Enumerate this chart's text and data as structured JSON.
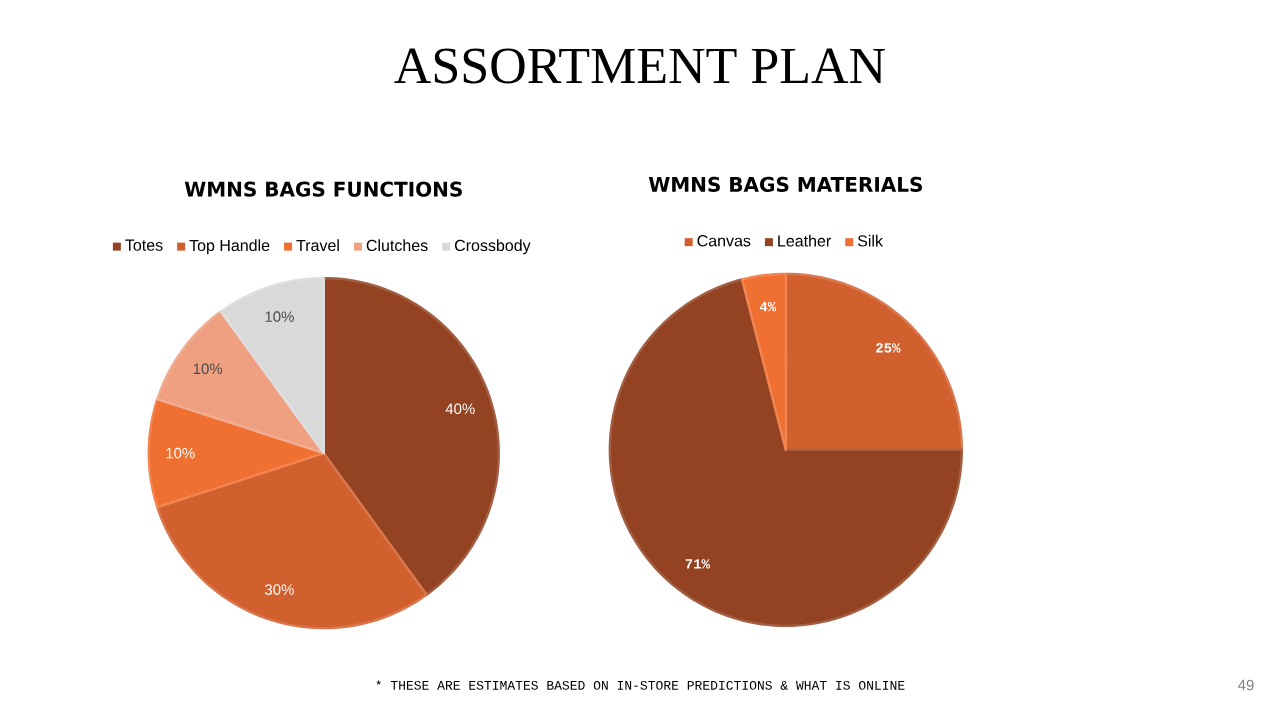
{
  "chart_data": [
    {
      "type": "pie",
      "title": "WMNS BAGS FUNCTIONS",
      "categories": [
        "Totes",
        "Top Handle",
        "Travel",
        "Clutches",
        "Crossbody"
      ],
      "values": [
        40,
        30,
        10,
        10,
        10
      ],
      "value_labels": [
        "40%",
        "30%",
        "10%",
        "10%",
        "10%"
      ],
      "colors": [
        "#934322",
        "#d2602f",
        "#f07032",
        "#efa080",
        "#d9d9d9"
      ],
      "legend": "top",
      "annotations": [
        "ASSORTMENT PLAN",
        "* THESE ARE ESTIMATES BASED ON IN-STORE PREDICTIONS & WHAT IS ONLINE",
        "49"
      ]
    },
    {
      "type": "pie",
      "title": "WMNS BAGS MATERIALS",
      "categories": [
        "Canvas",
        "Leather",
        "Silk"
      ],
      "values": [
        25,
        71,
        4
      ],
      "value_labels": [
        "25%",
        "71%",
        "4%"
      ],
      "colors": [
        "#d2602f",
        "#934322",
        "#f07032"
      ],
      "legend": "top"
    }
  ]
}
